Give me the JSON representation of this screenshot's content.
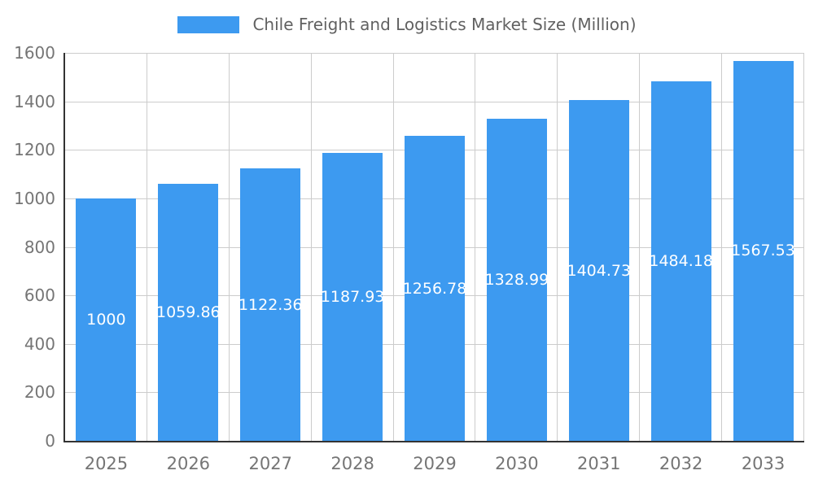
{
  "chart_data": {
    "type": "bar",
    "title": "Chile Freight and Logistics Market Size (Million)",
    "categories": [
      "2025",
      "2026",
      "2027",
      "2028",
      "2029",
      "2030",
      "2031",
      "2032",
      "2033"
    ],
    "values": [
      1000,
      1059.86,
      1122.36,
      1187.93,
      1256.78,
      1328.99,
      1404.73,
      1484.18,
      1567.53
    ],
    "value_labels": [
      "1000",
      "1059.86",
      "1122.36",
      "1187.93",
      "1256.78",
      "1328.99",
      "1404.73",
      "1484.18",
      "1567.53"
    ],
    "ylim": [
      0,
      1600
    ],
    "ytick_step": 200,
    "ytick_labels": [
      "0",
      "200",
      "400",
      "600",
      "800",
      "1000",
      "1200",
      "1400",
      "1600"
    ],
    "grid": true,
    "legend_position": "top",
    "bar_color": "#3d9af0",
    "axis_line_color": "#333333",
    "grid_color": "#cccccc",
    "tick_label_color": "#757575",
    "title_color": "#616161",
    "bar_label_color": "#ffffff"
  }
}
